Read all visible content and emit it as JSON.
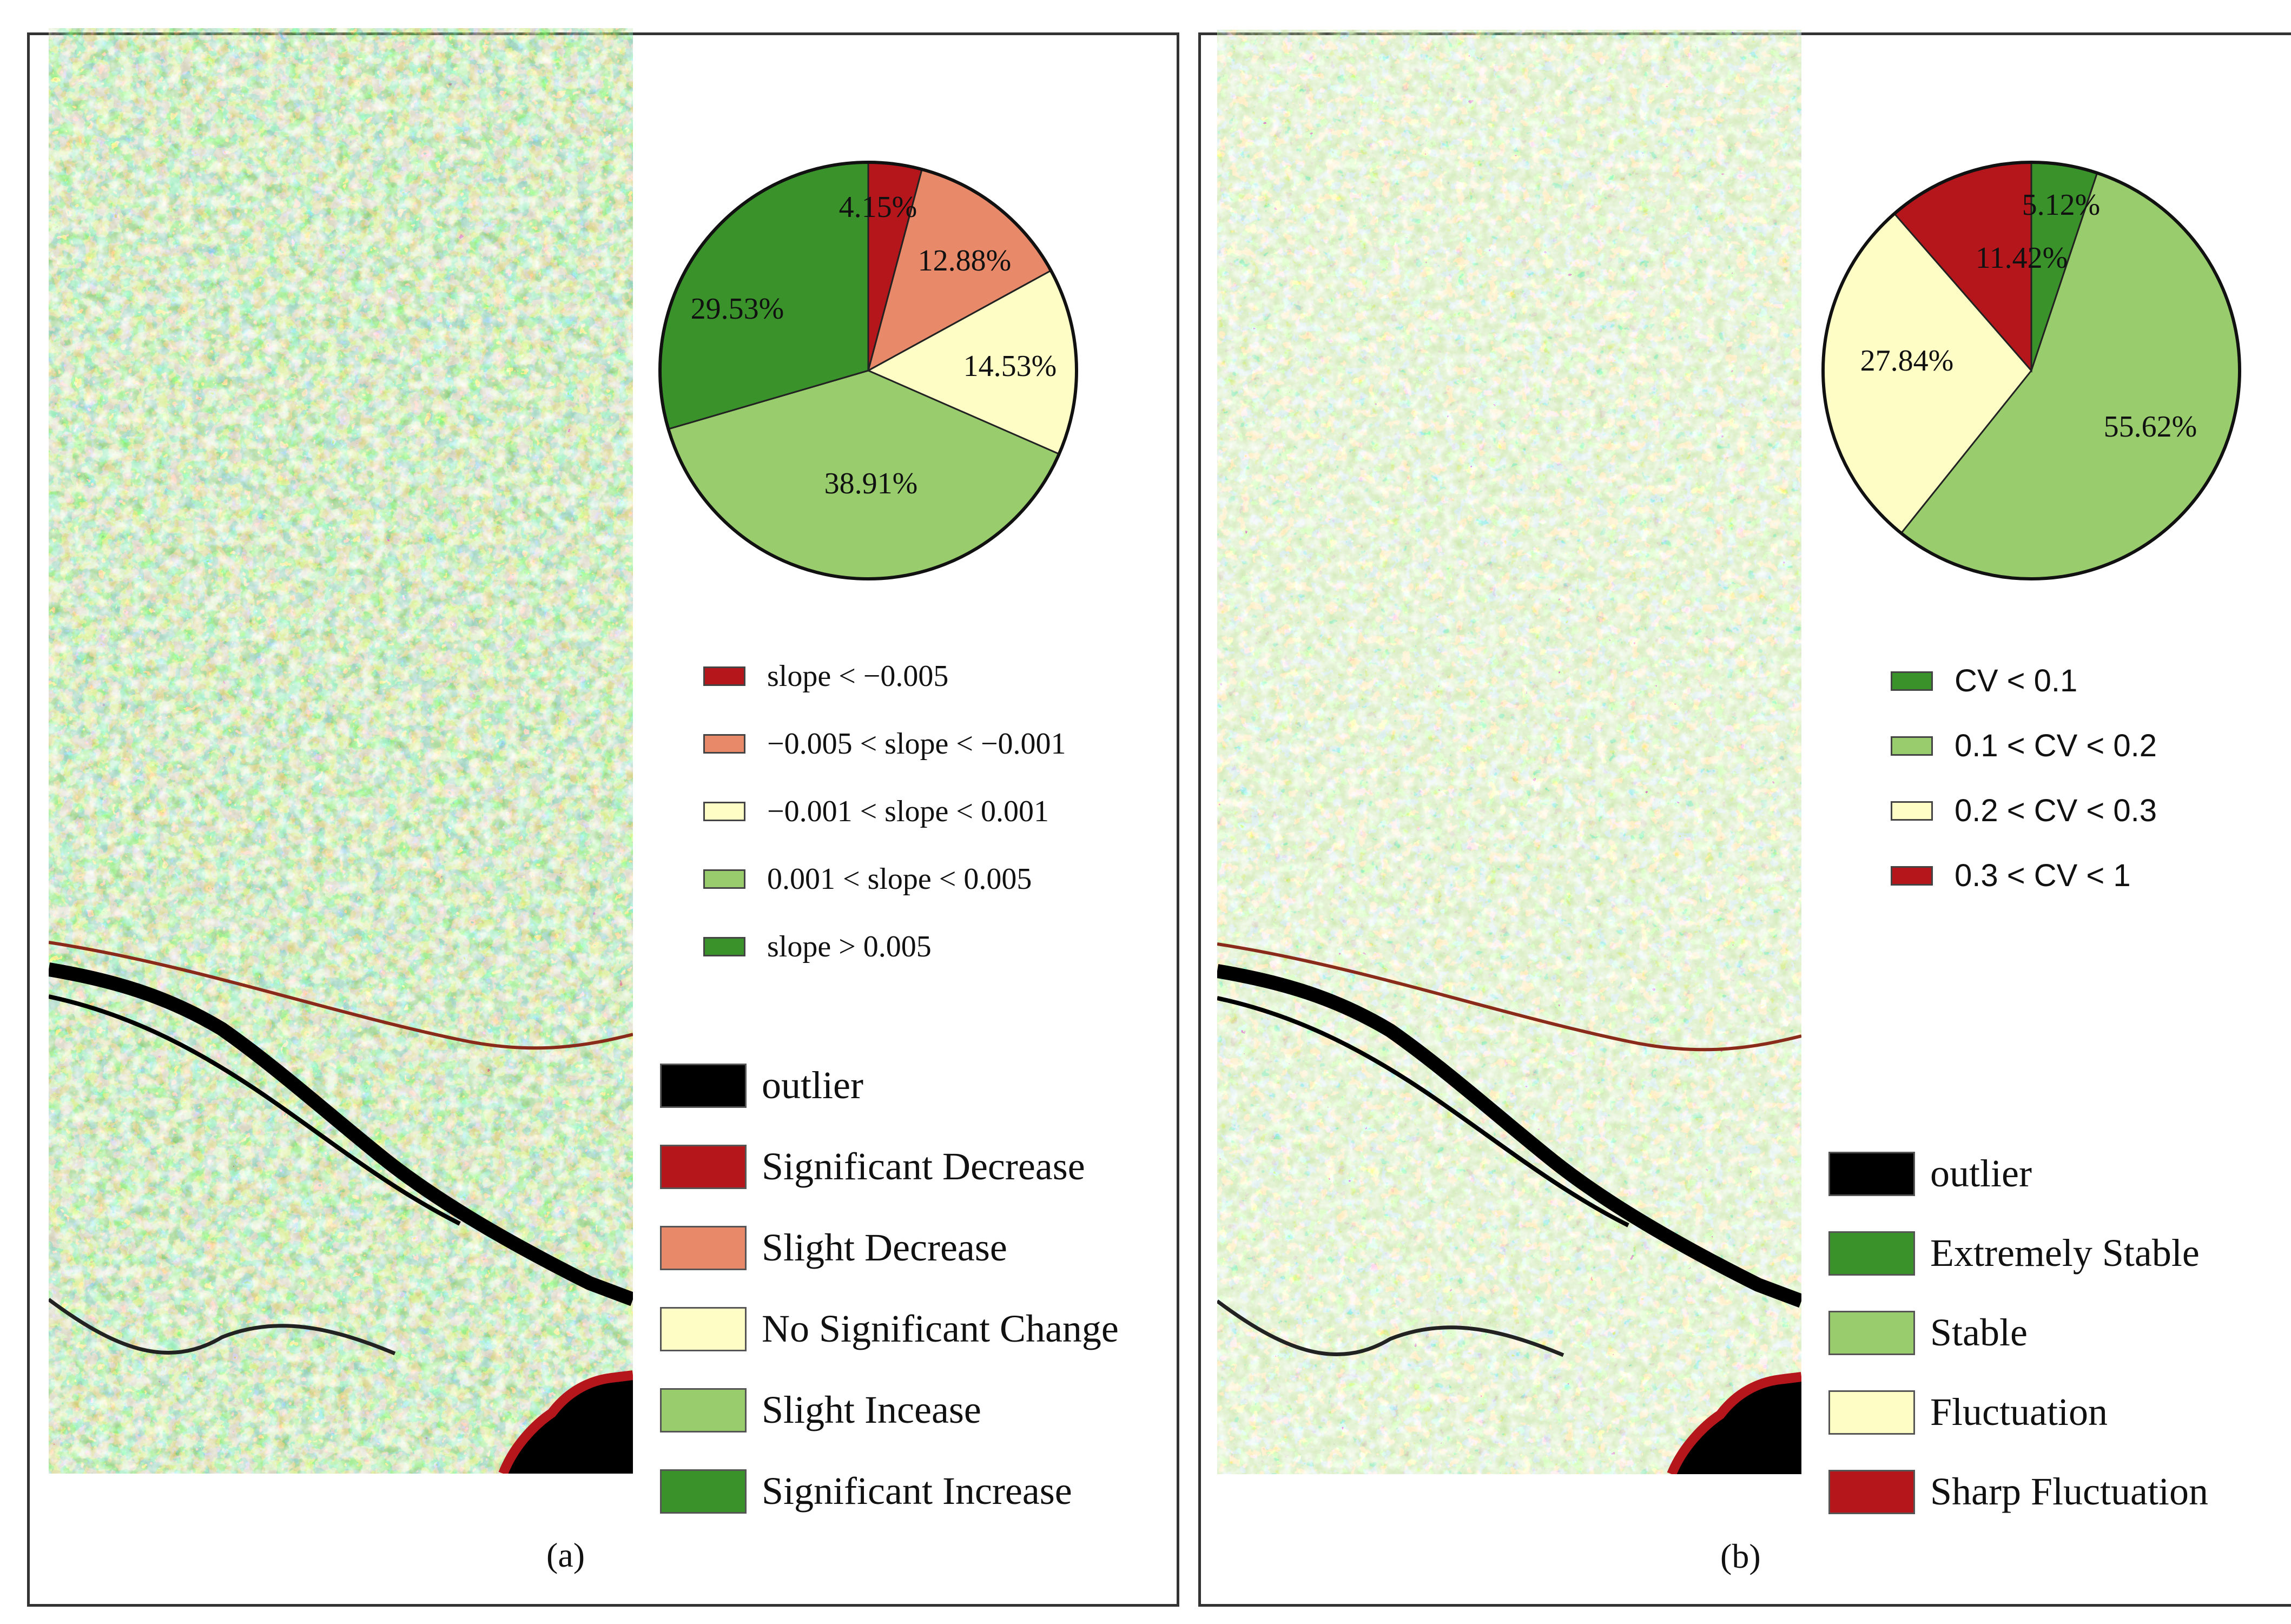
{
  "colors": {
    "significant_decrease": "#b5161b",
    "slight_decrease": "#e8896a",
    "no_change": "#fefdc6",
    "slight_increase": "#98cc6c",
    "significant_increase": "#3a932a",
    "outlier": "#000000",
    "extremely_stable": "#3a932a",
    "stable": "#98cc6c",
    "fluctuation": "#fefdc6",
    "sharp_fluctuation": "#b5161b"
  },
  "panel_a": {
    "caption": "(a)",
    "pie": {
      "slices": [
        {
          "label": "4.15%",
          "value": 4.15,
          "color_key": "significant_decrease"
        },
        {
          "label": "12.88%",
          "value": 12.88,
          "color_key": "slight_decrease"
        },
        {
          "label": "14.53%",
          "value": 14.53,
          "color_key": "no_change"
        },
        {
          "label": "38.91%",
          "value": 38.91,
          "color_key": "slight_increase"
        },
        {
          "label": "29.53%",
          "value": 29.53,
          "color_key": "significant_increase"
        }
      ]
    },
    "slope_legend": [
      {
        "label": "slope < −0.005",
        "color_key": "significant_decrease"
      },
      {
        "label": "−0.005 < slope < −0.001",
        "color_key": "slight_decrease"
      },
      {
        "label": "−0.001 < slope < 0.001",
        "color_key": "no_change"
      },
      {
        "label": "0.001 < slope < 0.005",
        "color_key": "slight_increase"
      },
      {
        "label": "slope > 0.005",
        "color_key": "significant_increase"
      }
    ],
    "class_legend": [
      {
        "label": "outlier",
        "color_key": "outlier"
      },
      {
        "label": "Significant Decrease",
        "color_key": "significant_decrease"
      },
      {
        "label": "Slight Decrease",
        "color_key": "slight_decrease"
      },
      {
        "label": "No Significant Change",
        "color_key": "no_change"
      },
      {
        "label": "Slight Incease",
        "color_key": "slight_increase"
      },
      {
        "label": "Significant Increase",
        "color_key": "significant_increase"
      }
    ]
  },
  "panel_b": {
    "caption": "(b)",
    "pie": {
      "slices": [
        {
          "label": "5.12%",
          "value": 5.12,
          "color_key": "extremely_stable"
        },
        {
          "label": "55.62%",
          "value": 55.62,
          "color_key": "stable"
        },
        {
          "label": "27.84%",
          "value": 27.84,
          "color_key": "fluctuation"
        },
        {
          "label": "11.42%",
          "value": 11.42,
          "color_key": "sharp_fluctuation"
        }
      ]
    },
    "cv_legend": [
      {
        "label": "CV < 0.1",
        "color_key": "extremely_stable"
      },
      {
        "label": "0.1 < CV < 0.2",
        "color_key": "stable"
      },
      {
        "label": "0.2 < CV < 0.3",
        "color_key": "fluctuation"
      },
      {
        "label": "0.3 < CV < 1",
        "color_key": "sharp_fluctuation"
      }
    ],
    "class_legend": [
      {
        "label": "outlier",
        "color_key": "outlier"
      },
      {
        "label": "Extremely Stable",
        "color_key": "extremely_stable"
      },
      {
        "label": "Stable",
        "color_key": "stable"
      },
      {
        "label": "Fluctuation",
        "color_key": "fluctuation"
      },
      {
        "label": "Sharp Fluctuation",
        "color_key": "sharp_fluctuation"
      }
    ]
  }
}
